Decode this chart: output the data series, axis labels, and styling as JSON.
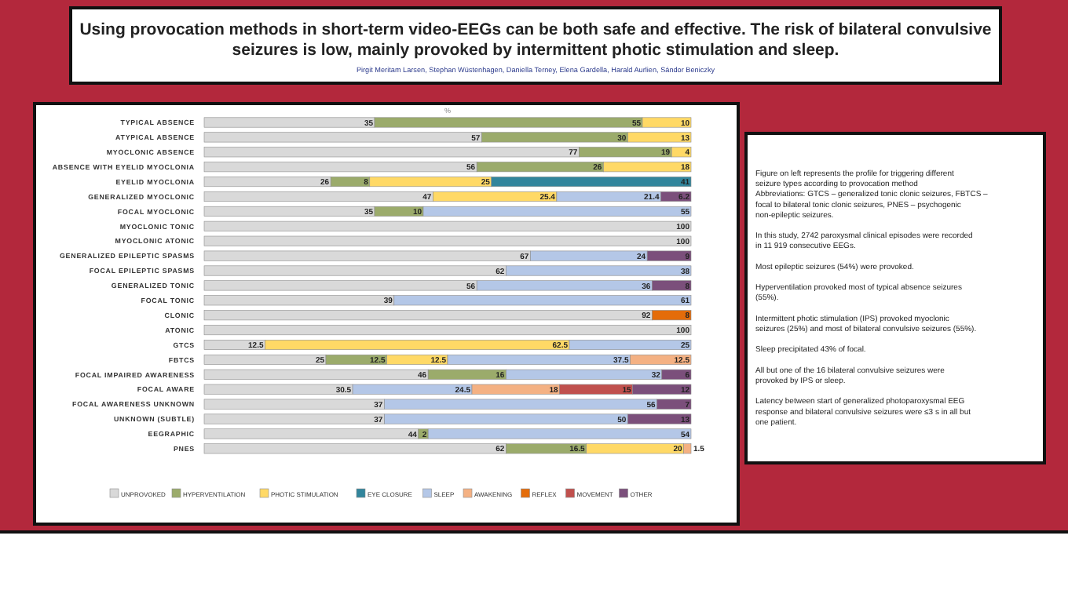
{
  "chart_data": {
    "type": "bar",
    "orientation": "horizontal",
    "stacked": true,
    "title": "Using provocation methods in short-term video-EEGs can be both safe and effective. The risk of bilateral convulsive seizures is low, mainly provoked by intermittent photic stimulation and sleep.",
    "subtitle": "Pirgit Meritam Larsen, Stephan Wüstenhagen, Daniella Terney, Elena Gardella, Harald Aurlien, Sándor Beniczky",
    "xlabel": "%",
    "xlim": [
      0,
      100
    ],
    "data_labels": true,
    "legend": "bottom",
    "categories": [
      "TYPICAL ABSENCE",
      "ATYPICAL ABSENCE",
      "MYOCLONIC ABSENCE",
      "ABSENCE WITH EYELID MYOCLONIA",
      "EYELID MYOCLONIA",
      "GENERALIZED MYOCLONIC",
      "FOCAL MYOCLONIC",
      "MYOCLONIC TONIC",
      "MYOCLONIC ATONIC",
      "GENERALIZED EPILEPTIC SPASMS",
      "FOCAL EPILEPTIC SPASMS",
      "GENERALIZED TONIC",
      "FOCAL TONIC",
      "CLONIC",
      "ATONIC",
      "GTCS",
      "FBTCS",
      "FOCAL IMPAIRED AWARENESS",
      "FOCAL AWARE",
      "FOCAL AWARENESS UNKNOWN",
      "UNKNOWN (SUBTLE)",
      "EEGRAPHIC",
      "PNES"
    ],
    "series": [
      {
        "name": "UNPROVOKED",
        "color": "#d9d9d9",
        "values": [
          35,
          57,
          77,
          56,
          26,
          47,
          35,
          100,
          100,
          67,
          62,
          56,
          39,
          92,
          100,
          12.5,
          25,
          46,
          30.5,
          37,
          37,
          44,
          62
        ]
      },
      {
        "name": "HYPERVENTILATION",
        "color": "#9bab6b",
        "values": [
          55,
          30,
          19,
          26,
          8,
          null,
          10,
          null,
          null,
          null,
          null,
          null,
          null,
          null,
          null,
          null,
          12.5,
          16,
          null,
          null,
          null,
          2,
          16.5
        ]
      },
      {
        "name": "PHOTIC STIMULATION",
        "color": "#ffd966",
        "values": [
          10,
          13,
          4,
          18,
          25,
          25.4,
          null,
          null,
          null,
          null,
          null,
          null,
          null,
          null,
          null,
          62.5,
          12.5,
          null,
          null,
          null,
          null,
          null,
          20
        ]
      },
      {
        "name": "EYE CLOSURE",
        "color": "#31859c",
        "values": [
          null,
          null,
          null,
          null,
          41,
          null,
          null,
          null,
          null,
          null,
          null,
          null,
          null,
          null,
          null,
          null,
          null,
          null,
          null,
          null,
          null,
          null,
          null
        ]
      },
      {
        "name": "SLEEP",
        "color": "#b4c7e7",
        "values": [
          null,
          null,
          null,
          null,
          null,
          21.4,
          55,
          null,
          null,
          24,
          38,
          36,
          61,
          null,
          null,
          25,
          37.5,
          32,
          24.5,
          56,
          50,
          54,
          null
        ]
      },
      {
        "name": "AWAKENING",
        "color": "#f4b183",
        "values": [
          null,
          null,
          null,
          null,
          null,
          null,
          null,
          null,
          null,
          null,
          null,
          null,
          null,
          null,
          null,
          null,
          12.5,
          null,
          18,
          null,
          null,
          null,
          1.5
        ]
      },
      {
        "name": "REFLEX",
        "color": "#e46c0a",
        "values": [
          null,
          null,
          null,
          null,
          null,
          null,
          null,
          null,
          null,
          null,
          null,
          null,
          null,
          8,
          null,
          null,
          null,
          null,
          null,
          null,
          null,
          null,
          null
        ]
      },
      {
        "name": "MOVEMENT",
        "color": "#c0504d",
        "values": [
          null,
          null,
          null,
          null,
          null,
          null,
          null,
          null,
          null,
          null,
          null,
          null,
          null,
          null,
          null,
          null,
          null,
          null,
          15,
          null,
          null,
          null,
          null
        ]
      },
      {
        "name": "OTHER",
        "color": "#7b4f7b",
        "values": [
          null,
          null,
          null,
          null,
          null,
          6.2,
          null,
          null,
          null,
          9,
          null,
          8,
          null,
          null,
          null,
          null,
          null,
          6,
          12,
          7,
          13,
          null,
          null
        ]
      }
    ],
    "annotations": [
      "Figure on left represents the profile for triggering different seizure types according to provocation method",
      "Abbreviations: GTCS – generalized tonic clonic seizures, FBTCS – focal to bilateral tonic clonic seizures, PNES – psychogenic non-epileptic seizures.",
      "In this study, 2742 paroxysmal clinical episodes were recorded in 11 919 consecutive EEGs.",
      "Most epileptic seizures (54%) were provoked.",
      "Hyperventilation provoked most of typical absence seizures (55%).",
      "Intermittent photic stimulation (IPS) provoked myoclonic seizures (25%) and most of bilateral convulsive seizures (55%).",
      "Sleep precipitated 43% of focal.",
      "All but one of the 16 bilateral convulsive seizures were provoked by IPS or sleep.",
      "Latency between start of generalized photoparoxysmal EEG response and bilateral convulsive seizures were ≤3 s in all but one patient."
    ]
  }
}
